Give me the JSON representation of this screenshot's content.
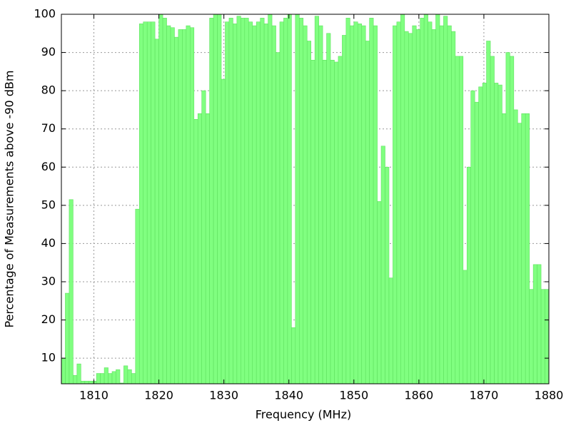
{
  "chart_data": {
    "type": "histogram",
    "xlabel": "Frequency (MHz)",
    "ylabel": "Percentage of Measurements above -90 dBm",
    "color": "#80ff80",
    "grid": true,
    "xlim": [
      1805,
      1880
    ],
    "ylim": [
      3.3,
      100
    ],
    "xticks": [
      1810,
      1820,
      1830,
      1840,
      1850,
      1860,
      1870,
      1880
    ],
    "yticks": [
      10,
      20,
      30,
      40,
      50,
      60,
      70,
      80,
      90,
      100
    ],
    "bins": [
      1805,
      1805.6,
      1806.2,
      1806.8,
      1807.4,
      1808,
      1808.6,
      1809.2,
      1809.8,
      1810.4,
      1811,
      1811.6,
      1812.2,
      1812.8,
      1813.4,
      1814,
      1814.6,
      1815.2,
      1815.8,
      1816.4,
      1817,
      1817.6,
      1818.2,
      1818.8,
      1819.4,
      1820,
      1820.6,
      1821.2,
      1821.8,
      1822.4,
      1823,
      1823.6,
      1824.2,
      1824.8,
      1825.4,
      1826,
      1826.6,
      1827.2,
      1827.8,
      1828.4,
      1829,
      1829.6,
      1830.2,
      1830.8,
      1831.4,
      1832,
      1832.6,
      1833.2,
      1833.8,
      1834.4,
      1835,
      1835.6,
      1836.2,
      1836.8,
      1837.4,
      1838,
      1838.6,
      1839.2,
      1839.8,
      1840.4,
      1841,
      1841.6,
      1842.2,
      1842.8,
      1843.4,
      1844,
      1844.6,
      1845.2,
      1845.8,
      1846.4,
      1847,
      1847.6,
      1848.2,
      1848.8,
      1849.4,
      1850,
      1850.6,
      1851.2,
      1851.8,
      1852.4,
      1853,
      1853.6,
      1854.2,
      1854.8,
      1855.4,
      1856,
      1856.6,
      1857.2,
      1857.8,
      1858.4,
      1859,
      1859.6,
      1860.2,
      1860.8,
      1861.4,
      1862,
      1862.6,
      1863.2,
      1863.8,
      1864.4,
      1865,
      1865.6,
      1866.2,
      1866.8,
      1867.4,
      1868,
      1868.6,
      1869.2,
      1869.8,
      1870.4,
      1871,
      1871.6,
      1872.2,
      1872.8,
      1873.4,
      1874,
      1874.6,
      1875.2,
      1875.8,
      1876.4,
      1877,
      1877.6,
      1878.2,
      1878.8,
      1879.4,
      1880
    ],
    "values": [
      10,
      27,
      51.5,
      5.5,
      8.5,
      4,
      4,
      4,
      4,
      6,
      6,
      7.5,
      6,
      6.5,
      7,
      3.5,
      8,
      7,
      6,
      49,
      97.5,
      98,
      98,
      98,
      93.5,
      100,
      99,
      97,
      96.5,
      94,
      96,
      96,
      97,
      96.5,
      72.5,
      74,
      80,
      74,
      99,
      100,
      100,
      83,
      98,
      99,
      97.5,
      99.5,
      99,
      99,
      98,
      97,
      98,
      99,
      97.5,
      100,
      97,
      90,
      98,
      99,
      100,
      18,
      100,
      99,
      97,
      93,
      88,
      99.5,
      97,
      88,
      95,
      88,
      87.5,
      89,
      94.5,
      99,
      97,
      98,
      97.5,
      97,
      93,
      99,
      97,
      51,
      65.5,
      60,
      31,
      97,
      98,
      100,
      95.5,
      95,
      97,
      96,
      99,
      100,
      98,
      96,
      100,
      97,
      99.5,
      97,
      95.5,
      89,
      89,
      33,
      60,
      80,
      77,
      81,
      82,
      93,
      89,
      82,
      81.5,
      74,
      90,
      89,
      75,
      71.5,
      74,
      74,
      28,
      34.5,
      34.5,
      28,
      28
    ]
  }
}
